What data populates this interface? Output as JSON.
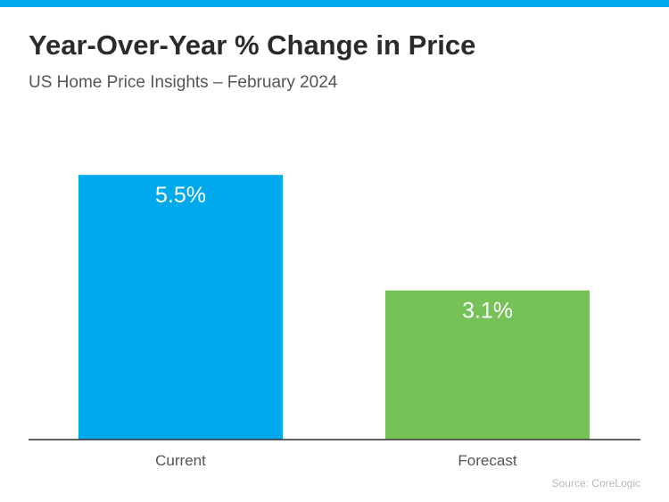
{
  "header": {
    "title": "Year-Over-Year % Change in Price",
    "subtitle": "US Home Price Insights – February 2024"
  },
  "source": "Source: CoreLogic",
  "colors": {
    "top_bar": "#00a9ec",
    "current": "#00a9ec",
    "forecast": "#77c159",
    "baseline": "#333333"
  },
  "chart_data": {
    "type": "bar",
    "title": "Year-Over-Year % Change in Price",
    "subtitle": "US Home Price Insights – February 2024",
    "categories": [
      "Current",
      "Forecast"
    ],
    "values": [
      5.5,
      3.1
    ],
    "value_labels": [
      "5.5%",
      "3.1%"
    ],
    "colors": [
      "#00a9ec",
      "#77c159"
    ],
    "ylim": [
      0,
      6.3
    ],
    "grid": false,
    "legend": "none"
  }
}
